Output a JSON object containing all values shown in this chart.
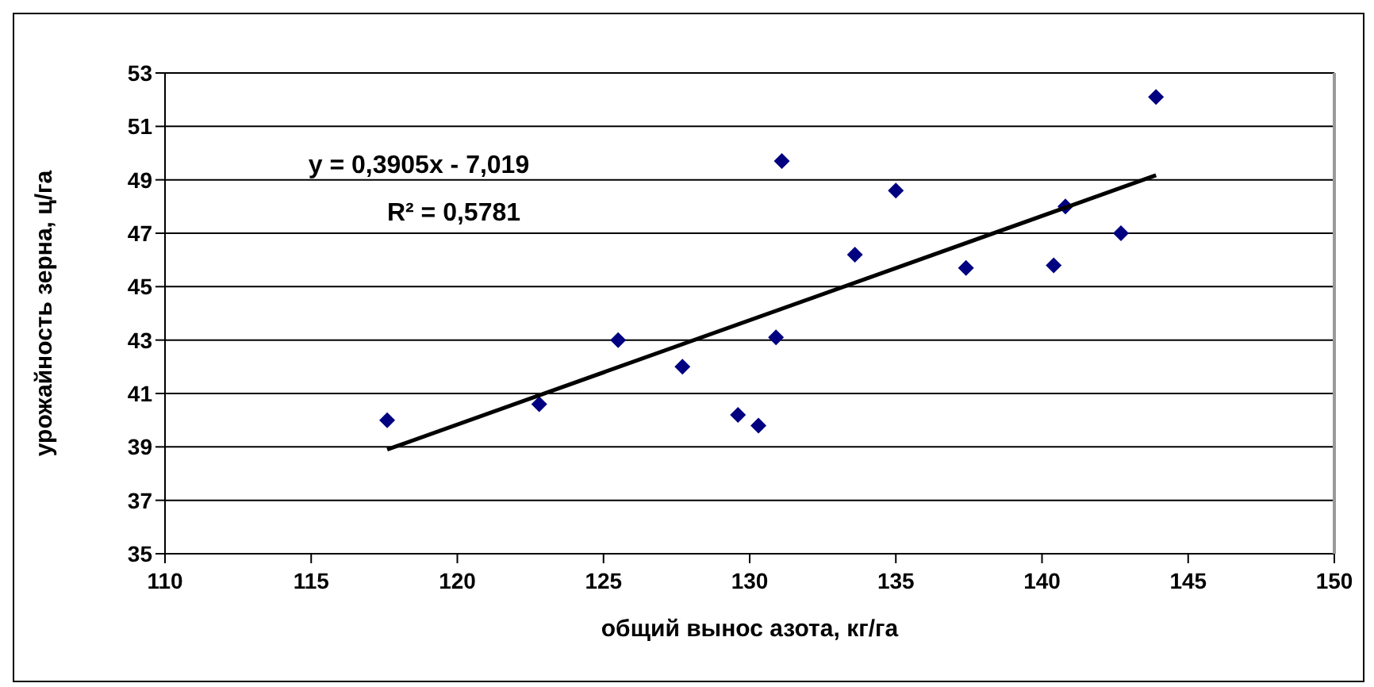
{
  "chart_data": {
    "type": "scatter",
    "xlabel": "общий вынос азота, кг/га",
    "ylabel": "урожайность зерна, ц/га",
    "series": [
      {
        "type": "scatter",
        "color": "#000080",
        "marker": "diamond",
        "x": [
          117.6,
          122.8,
          125.5,
          127.7,
          129.6,
          130.3,
          130.9,
          131.1,
          133.6,
          135.0,
          137.4,
          140.4,
          140.8,
          142.7,
          143.9
        ],
        "values": [
          40.0,
          40.6,
          43.0,
          42.0,
          40.2,
          39.8,
          43.1,
          49.7,
          46.2,
          48.6,
          45.7,
          45.8,
          48.0,
          47.0,
          52.1
        ]
      },
      {
        "type": "line",
        "color": "#000000",
        "marker": "none",
        "x": [
          117.6,
          143.9
        ],
        "values": [
          38.9,
          49.17
        ]
      }
    ],
    "xlim": [
      110,
      150
    ],
    "xticks": [
      110,
      115,
      120,
      125,
      130,
      135,
      140,
      145,
      150
    ],
    "ylim": [
      35,
      53
    ],
    "yticks": [
      35,
      37,
      39,
      41,
      43,
      45,
      47,
      49,
      51,
      53
    ],
    "grid": "y",
    "annotations": [
      "y = 0,3905x - 7,019",
      "R² = 0,5781"
    ]
  }
}
